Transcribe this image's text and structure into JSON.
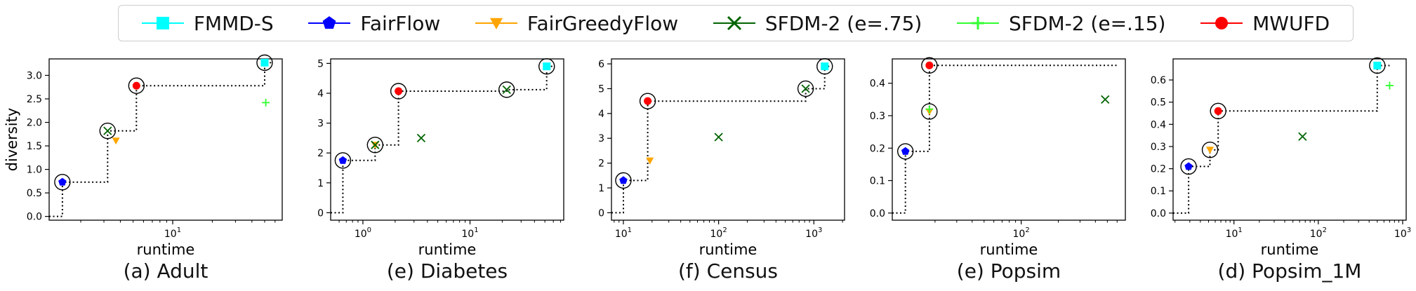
{
  "legend": [
    {
      "label": "FMMD-S",
      "color": "#00FFFF",
      "marker": "square"
    },
    {
      "label": "FairFlow",
      "color": "#0000FF",
      "marker": "pentagon"
    },
    {
      "label": "FairGreedyFlow",
      "color": "#FFA500",
      "marker": "triangle-down"
    },
    {
      "label": "SFDM-2 (e=.75)",
      "color": "#006400",
      "marker": "x"
    },
    {
      "label": "SFDM-2 (e=.15)",
      "color": "#32FF32",
      "marker": "plus"
    },
    {
      "label": "MWUFD",
      "color": "#FF0000",
      "marker": "circle"
    }
  ],
  "chart_data": [
    {
      "type": "scatter",
      "caption": "(a) Adult",
      "xlabel": "runtime",
      "ylabel": "diversity",
      "xscale": "log",
      "xlim": [
        1.15,
        68
      ],
      "ylim": [
        -0.08,
        3.35
      ],
      "x_ticks": [
        {
          "value": 10,
          "label": "10^1"
        }
      ],
      "y_ticks": [
        0.0,
        0.5,
        1.0,
        1.5,
        2.0,
        2.5,
        3.0
      ],
      "y_tick_labels": [
        "0.0",
        "0.5",
        "1.0",
        "1.5",
        "2.0",
        "2.5",
        "3.0"
      ],
      "points": [
        {
          "series": "FairFlow",
          "x": 1.45,
          "y": 0.73
        },
        {
          "series": "SFDM-2 (e=.75)",
          "x": 3.2,
          "y": 1.82
        },
        {
          "series": "FairGreedyFlow",
          "x": 3.7,
          "y": 1.61
        },
        {
          "series": "MWUFD",
          "x": 5.3,
          "y": 2.78
        },
        {
          "series": "FMMD-S",
          "x": 50,
          "y": 3.27
        },
        {
          "series": "SFDM-2 (e=.15)",
          "x": 51,
          "y": 2.42
        }
      ],
      "circled": [
        {
          "x": 1.45,
          "y": 0.73
        },
        {
          "x": 3.2,
          "y": 1.82
        },
        {
          "x": 5.3,
          "y": 2.78
        },
        {
          "x": 50,
          "y": 3.27
        }
      ],
      "step": [
        [
          1.15,
          0
        ],
        [
          1.45,
          0
        ],
        [
          1.45,
          0.73
        ],
        [
          3.2,
          0.73
        ],
        [
          3.2,
          1.82
        ],
        [
          5.3,
          1.82
        ],
        [
          5.3,
          2.78
        ],
        [
          50,
          2.78
        ],
        [
          50,
          3.27
        ],
        [
          58,
          3.27
        ]
      ]
    },
    {
      "type": "scatter",
      "caption": "(e) Diabetes",
      "xlabel": "runtime",
      "ylabel": "",
      "xscale": "log",
      "xlim": [
        0.5,
        75
      ],
      "ylim": [
        -0.25,
        5.15
      ],
      "x_ticks": [
        {
          "value": 1,
          "label": "10^0"
        },
        {
          "value": 10,
          "label": "10^1"
        }
      ],
      "y_ticks": [
        0,
        1,
        2,
        3,
        4,
        5
      ],
      "y_tick_labels": [
        "0",
        "1",
        "2",
        "3",
        "4",
        "5"
      ],
      "points": [
        {
          "series": "FairFlow",
          "x": 0.65,
          "y": 1.75
        },
        {
          "series": "FairGreedyFlow",
          "x": 1.3,
          "y": 2.27
        },
        {
          "series": "SFDM-2 (e=.75)",
          "x": 1.3,
          "y": 2.27
        },
        {
          "series": "MWUFD",
          "x": 2.15,
          "y": 4.07
        },
        {
          "series": "SFDM-2 (e=.75)",
          "x": 3.5,
          "y": 2.5
        },
        {
          "series": "SFDM-2 (e=.75)",
          "x": 22,
          "y": 4.12
        },
        {
          "series": "FMMD-S",
          "x": 52,
          "y": 4.9
        }
      ],
      "circled": [
        {
          "x": 0.65,
          "y": 1.75
        },
        {
          "x": 1.3,
          "y": 2.27
        },
        {
          "x": 2.15,
          "y": 4.07
        },
        {
          "x": 22,
          "y": 4.12
        },
        {
          "x": 52,
          "y": 4.9
        }
      ],
      "step": [
        [
          0.5,
          0
        ],
        [
          0.65,
          0
        ],
        [
          0.65,
          1.75
        ],
        [
          1.3,
          1.75
        ],
        [
          1.3,
          2.27
        ],
        [
          2.15,
          2.27
        ],
        [
          2.15,
          4.07
        ],
        [
          22,
          4.07
        ],
        [
          22,
          4.12
        ],
        [
          52,
          4.12
        ],
        [
          52,
          4.9
        ],
        [
          60,
          4.9
        ]
      ]
    },
    {
      "type": "scatter",
      "caption": "(f) Census",
      "xlabel": "runtime",
      "ylabel": "",
      "xscale": "log",
      "xlim": [
        7.5,
        2100
      ],
      "ylim": [
        -0.3,
        6.2
      ],
      "x_ticks": [
        {
          "value": 10,
          "label": "10^1"
        },
        {
          "value": 100,
          "label": "10^2"
        },
        {
          "value": 1000,
          "label": "10^3"
        }
      ],
      "y_ticks": [
        0,
        1,
        2,
        3,
        4,
        5,
        6
      ],
      "y_tick_labels": [
        "0",
        "1",
        "2",
        "3",
        "4",
        "5",
        "6"
      ],
      "points": [
        {
          "series": "FairFlow",
          "x": 10,
          "y": 1.3
        },
        {
          "series": "MWUFD",
          "x": 18,
          "y": 4.5
        },
        {
          "series": "FairGreedyFlow",
          "x": 19,
          "y": 2.1
        },
        {
          "series": "SFDM-2 (e=.75)",
          "x": 100,
          "y": 3.05
        },
        {
          "series": "SFDM-2 (e=.75)",
          "x": 820,
          "y": 5.0
        },
        {
          "series": "FMMD-S",
          "x": 1300,
          "y": 5.9
        }
      ],
      "circled": [
        {
          "x": 10,
          "y": 1.3
        },
        {
          "x": 18,
          "y": 4.5
        },
        {
          "x": 820,
          "y": 5.0
        },
        {
          "x": 1300,
          "y": 5.9
        }
      ],
      "step": [
        [
          7.5,
          0
        ],
        [
          10,
          0
        ],
        [
          10,
          1.3
        ],
        [
          18,
          1.3
        ],
        [
          18,
          4.5
        ],
        [
          820,
          4.5
        ],
        [
          820,
          5.0
        ],
        [
          1300,
          5.0
        ],
        [
          1300,
          5.9
        ],
        [
          1500,
          5.9
        ]
      ]
    },
    {
      "type": "scatter",
      "caption": "(e) Popsim",
      "xlabel": "runtime",
      "ylabel": "",
      "xscale": "log",
      "xlim": [
        9,
        700
      ],
      "ylim": [
        -0.022,
        0.475
      ],
      "x_ticks": [
        {
          "value": 100,
          "label": "10^2"
        }
      ],
      "y_ticks": [
        0.0,
        0.1,
        0.2,
        0.3,
        0.4
      ],
      "y_tick_labels": [
        "0.0",
        "0.1",
        "0.2",
        "0.3",
        "0.4"
      ],
      "points": [
        {
          "series": "FairFlow",
          "x": 11.5,
          "y": 0.19
        },
        {
          "series": "FairGreedyFlow",
          "x": 18,
          "y": 0.313
        },
        {
          "series": "SFDM-2 (e=.15)",
          "x": 18,
          "y": 0.32
        },
        {
          "series": "MWUFD",
          "x": 18,
          "y": 0.455
        },
        {
          "series": "SFDM-2 (e=.75)",
          "x": 480,
          "y": 0.35
        }
      ],
      "circled": [
        {
          "x": 11.5,
          "y": 0.19
        },
        {
          "x": 18,
          "y": 0.313
        },
        {
          "x": 18,
          "y": 0.455
        }
      ],
      "step": [
        [
          9,
          0
        ],
        [
          11.5,
          0
        ],
        [
          11.5,
          0.19
        ],
        [
          18,
          0.19
        ],
        [
          18,
          0.455
        ],
        [
          600,
          0.455
        ]
      ]
    },
    {
      "type": "scatter",
      "caption": "(d) Popsim_1M",
      "xlabel": "runtime",
      "ylabel": "",
      "xscale": "log",
      "xlim": [
        1.9,
        1100
      ],
      "ylim": [
        -0.032,
        0.695
      ],
      "x_ticks": [
        {
          "value": 10,
          "label": "10^1"
        },
        {
          "value": 100,
          "label": "10^2"
        },
        {
          "value": 1000,
          "label": "10^3"
        }
      ],
      "y_ticks": [
        0.0,
        0.1,
        0.2,
        0.3,
        0.4,
        0.5,
        0.6
      ],
      "y_tick_labels": [
        "0.0",
        "0.1",
        "0.2",
        "0.3",
        "0.4",
        "0.5",
        "0.6"
      ],
      "points": [
        {
          "series": "FairFlow",
          "x": 2.9,
          "y": 0.21
        },
        {
          "series": "FairGreedyFlow",
          "x": 5.2,
          "y": 0.285
        },
        {
          "series": "MWUFD",
          "x": 6.5,
          "y": 0.46
        },
        {
          "series": "SFDM-2 (e=.75)",
          "x": 65,
          "y": 0.345
        },
        {
          "series": "FMMD-S",
          "x": 500,
          "y": 0.665
        },
        {
          "series": "SFDM-2 (e=.15)",
          "x": 700,
          "y": 0.575
        }
      ],
      "circled": [
        {
          "x": 2.9,
          "y": 0.21
        },
        {
          "x": 5.2,
          "y": 0.285
        },
        {
          "x": 6.5,
          "y": 0.46
        },
        {
          "x": 500,
          "y": 0.665
        }
      ],
      "step": [
        [
          1.9,
          0
        ],
        [
          2.9,
          0
        ],
        [
          2.9,
          0.21
        ],
        [
          5.2,
          0.21
        ],
        [
          5.2,
          0.285
        ],
        [
          6.5,
          0.285
        ],
        [
          6.5,
          0.46
        ],
        [
          500,
          0.46
        ],
        [
          500,
          0.665
        ],
        [
          700,
          0.665
        ]
      ]
    }
  ]
}
